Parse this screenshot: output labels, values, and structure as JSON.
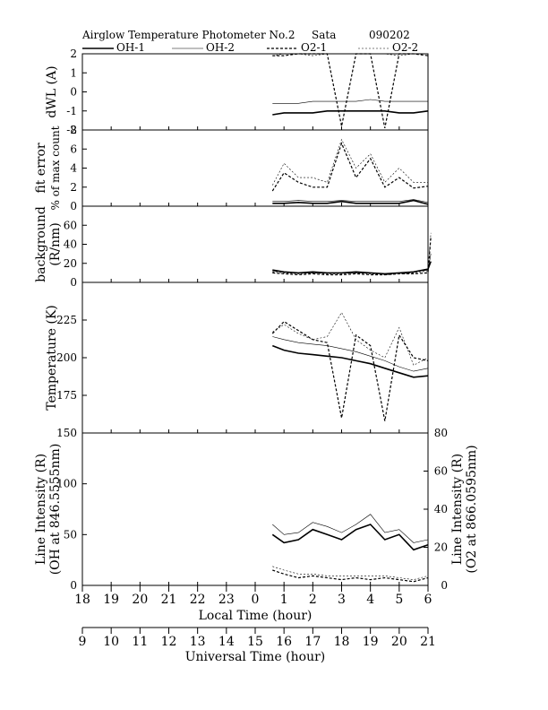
{
  "header": {
    "title": "Airglow Temperature Photometer No.2",
    "site": "Sata",
    "date": "090202"
  },
  "legend": [
    {
      "name": "OH-1",
      "style": "solid-thick"
    },
    {
      "name": "OH-2",
      "style": "solid-thin"
    },
    {
      "name": "O2-1",
      "style": "dashed-thick"
    },
    {
      "name": "O2-2",
      "style": "dashed-thin"
    }
  ],
  "x_axes": {
    "local": {
      "label": "Local Time (hour)",
      "ticks": [
        "18",
        "19",
        "20",
        "21",
        "22",
        "23",
        "0",
        "1",
        "2",
        "3",
        "4",
        "5",
        "6"
      ],
      "range": [
        18,
        30
      ]
    },
    "universal": {
      "label": "Universal Time (hour)",
      "ticks": [
        "9",
        "10",
        "11",
        "12",
        "13",
        "14",
        "15",
        "16",
        "17",
        "18",
        "19",
        "20",
        "21"
      ],
      "range": [
        9,
        21
      ]
    }
  },
  "chart_data": [
    {
      "type": "line",
      "ylabel": "dWL (A)",
      "ylim": [
        -2,
        2
      ],
      "yticks": [
        "2",
        "1",
        "0",
        "-1",
        "-2"
      ],
      "x": [
        24.6,
        25.0,
        25.5,
        26.0,
        26.5,
        27.0,
        27.5,
        28.0,
        28.5,
        29.0,
        29.5,
        30.0
      ],
      "series": [
        {
          "name": "OH-1",
          "values": [
            -1.2,
            -1.1,
            -1.1,
            -1.1,
            -1.0,
            -1.0,
            -1.0,
            -1.0,
            -1.0,
            -1.1,
            -1.1,
            -1.0
          ]
        },
        {
          "name": "OH-2",
          "values": [
            -0.6,
            -0.6,
            -0.6,
            -0.5,
            -0.5,
            -0.5,
            -0.5,
            -0.4,
            -0.5,
            -0.5,
            -0.5,
            -0.5
          ]
        },
        {
          "name": "O2-1",
          "values": [
            1.9,
            1.9,
            2.0,
            2.0,
            2.0,
            -1.8,
            2.0,
            2.0,
            -1.9,
            2.0,
            2.0,
            1.9
          ]
        },
        {
          "name": "O2-2",
          "values": [
            1.9,
            2.0,
            2.0,
            1.9,
            2.0,
            2.0,
            2.0,
            2.0,
            2.0,
            1.9,
            2.0,
            2.0
          ]
        }
      ]
    },
    {
      "type": "line",
      "ylabel": "fit error",
      "ylabel2": "% of max count",
      "ylim": [
        0,
        8
      ],
      "yticks": [
        "8",
        "6",
        "4",
        "2",
        "0"
      ],
      "x": [
        24.6,
        25.0,
        25.5,
        26.0,
        26.5,
        27.0,
        27.5,
        28.0,
        28.5,
        29.0,
        29.5,
        30.0
      ],
      "series": [
        {
          "name": "OH-1",
          "values": [
            0.3,
            0.3,
            0.4,
            0.3,
            0.3,
            0.5,
            0.3,
            0.3,
            0.3,
            0.3,
            0.6,
            0.2
          ]
        },
        {
          "name": "OH-2",
          "values": [
            0.5,
            0.5,
            0.6,
            0.5,
            0.5,
            0.6,
            0.5,
            0.5,
            0.5,
            0.5,
            0.7,
            0.4
          ]
        },
        {
          "name": "O2-1",
          "values": [
            1.6,
            3.5,
            2.5,
            2.0,
            2.0,
            6.6,
            3.0,
            5.0,
            2.0,
            3.0,
            1.9,
            2.1
          ]
        },
        {
          "name": "O2-2",
          "values": [
            2.2,
            4.5,
            3.0,
            3.0,
            2.5,
            7.0,
            4.0,
            5.5,
            2.5,
            4.0,
            2.5,
            2.5
          ]
        }
      ]
    },
    {
      "type": "line",
      "ylabel": "background",
      "ylabel2": "(R/nm)",
      "ylim": [
        0,
        80
      ],
      "yticks": [
        "60",
        "40",
        "20",
        "0"
      ],
      "x": [
        24.6,
        25.0,
        25.5,
        26.0,
        26.5,
        27.0,
        27.5,
        28.0,
        28.5,
        29.0,
        29.5,
        30.0,
        30.1
      ],
      "series": [
        {
          "name": "OH-1",
          "values": [
            13,
            11,
            10,
            11,
            10,
            10,
            11,
            10,
            9,
            10,
            11,
            14,
            22
          ]
        },
        {
          "name": "OH-2",
          "values": [
            12,
            11,
            10,
            10,
            10,
            10,
            10,
            10,
            9,
            10,
            11,
            13,
            30
          ]
        },
        {
          "name": "O2-1",
          "values": [
            10,
            9,
            8,
            9,
            8,
            8,
            9,
            8,
            8,
            9,
            9,
            10,
            48
          ]
        },
        {
          "name": "O2-2",
          "values": [
            11,
            10,
            9,
            10,
            9,
            9,
            10,
            9,
            8,
            9,
            10,
            12,
            52
          ]
        }
      ]
    },
    {
      "type": "line",
      "ylabel": "Temperature (K)",
      "ylim": [
        150,
        250
      ],
      "yticks": [
        "225",
        "200",
        "175"
      ],
      "x": [
        24.6,
        25.0,
        25.5,
        26.0,
        26.5,
        27.0,
        27.5,
        28.0,
        28.5,
        29.0,
        29.5,
        30.0
      ],
      "series": [
        {
          "name": "OH-1",
          "values": [
            208,
            205,
            203,
            202,
            201,
            200,
            198,
            196,
            193,
            190,
            187,
            188
          ]
        },
        {
          "name": "OH-2",
          "values": [
            214,
            212,
            210,
            209,
            208,
            206,
            204,
            201,
            198,
            194,
            191,
            193
          ]
        },
        {
          "name": "O2-1",
          "values": [
            216,
            224,
            218,
            212,
            210,
            160,
            215,
            208,
            158,
            215,
            200,
            198
          ]
        },
        {
          "name": "O2-2",
          "values": [
            217,
            222,
            216,
            212,
            214,
            230,
            212,
            205,
            200,
            220,
            195,
            200
          ]
        }
      ]
    },
    {
      "type": "line",
      "ylabel": "Line Intensity (R)",
      "ylabel2": "(OH at 846.5555nm)",
      "ylabel_right": "Line Intensity (R)",
      "ylabel_right2": "(O2 at 866.0595nm)",
      "ylim": [
        0,
        150
      ],
      "yticks": [
        "150",
        "100",
        "50",
        "0"
      ],
      "ylim_right": [
        0,
        80
      ],
      "yticks_right": [
        "80",
        "60",
        "40",
        "20",
        "0"
      ],
      "x": [
        24.6,
        25.0,
        25.5,
        26.0,
        26.5,
        27.0,
        27.5,
        28.0,
        28.5,
        29.0,
        29.5,
        30.0
      ],
      "series": [
        {
          "name": "OH-1",
          "values": [
            50,
            42,
            45,
            55,
            50,
            45,
            55,
            60,
            45,
            50,
            35,
            40
          ]
        },
        {
          "name": "OH-2",
          "values": [
            60,
            50,
            52,
            62,
            58,
            52,
            60,
            70,
            52,
            55,
            42,
            45
          ]
        },
        {
          "name": "O2-1",
          "values": [
            8,
            6,
            4,
            5,
            4,
            3,
            4,
            3,
            4,
            3,
            2,
            4
          ],
          "axis": "right"
        },
        {
          "name": "O2-2",
          "values": [
            10,
            8,
            6,
            6,
            5,
            5,
            5,
            5,
            5,
            4,
            3,
            5
          ],
          "axis": "right"
        }
      ]
    }
  ]
}
